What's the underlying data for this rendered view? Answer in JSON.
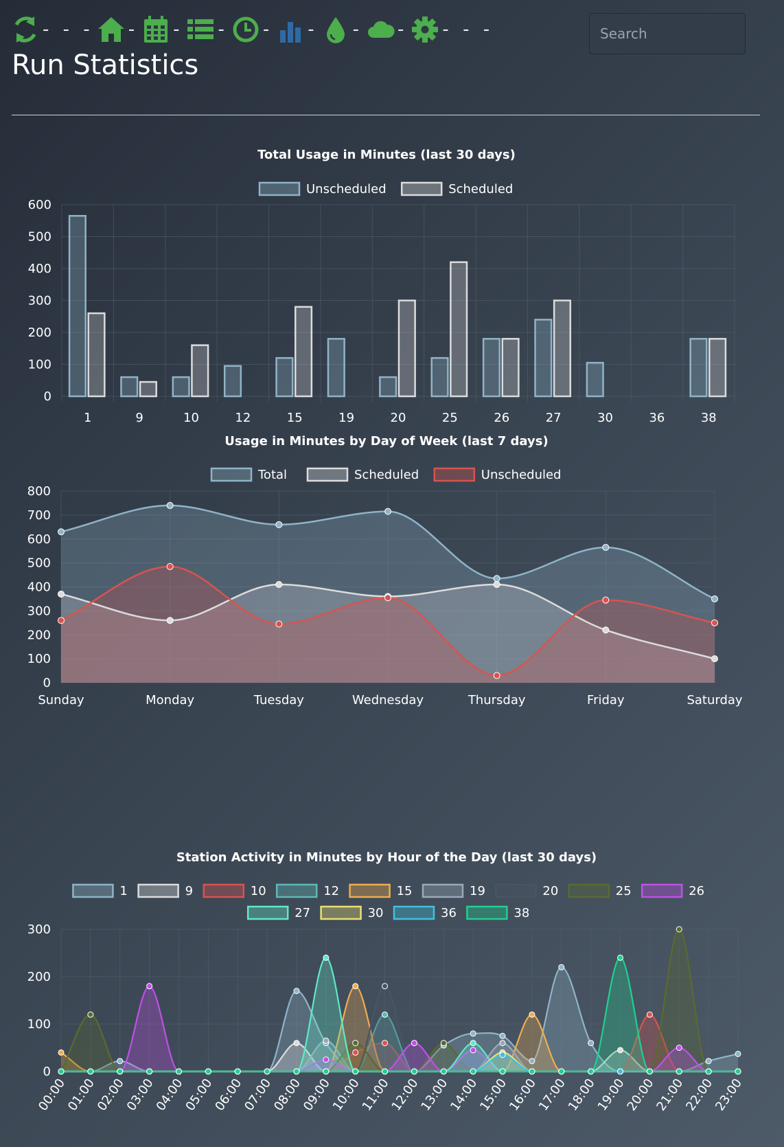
{
  "toolbar": {
    "icons": [
      {
        "name": "refresh-icon",
        "color": "#4cae4c"
      },
      {
        "name": "home-icon",
        "color": "#4cae4c"
      },
      {
        "name": "calendar-icon",
        "color": "#4cae4c"
      },
      {
        "name": "list-icon",
        "color": "#4cae4c"
      },
      {
        "name": "clock-icon",
        "color": "#4cae4c"
      },
      {
        "name": "bar-chart-icon",
        "color": "#2f6aa6"
      },
      {
        "name": "water-drop-icon",
        "color": "#4cae4c"
      },
      {
        "name": "cloud-icon",
        "color": "#4cae4c"
      },
      {
        "name": "gear-icon",
        "color": "#4cae4c"
      }
    ],
    "separator": "-"
  },
  "search": {
    "placeholder": "Search"
  },
  "page": {
    "title": "Run Statistics"
  },
  "chart_data": [
    {
      "type": "bar",
      "title": "Total Usage in Minutes (last 30 days)",
      "categories": [
        "1",
        "9",
        "10",
        "12",
        "15",
        "19",
        "20",
        "25",
        "26",
        "27",
        "30",
        "36",
        "38"
      ],
      "series": [
        {
          "name": "Unscheduled",
          "values": [
            565,
            60,
            60,
            95,
            120,
            180,
            60,
            120,
            180,
            240,
            105,
            0,
            180
          ],
          "color": "#8fb4c8"
        },
        {
          "name": "Scheduled",
          "values": [
            260,
            45,
            160,
            0,
            280,
            0,
            300,
            420,
            180,
            300,
            0,
            0,
            180
          ],
          "color": "#dcdcdc"
        }
      ],
      "ylim": [
        0,
        600
      ],
      "yticks": [
        0,
        100,
        200,
        300,
        400,
        500,
        600
      ],
      "xlabel": "",
      "ylabel": "",
      "grid": true,
      "legend": "top"
    },
    {
      "type": "area",
      "title": "Usage in Minutes by Day of Week (last 7 days)",
      "categories": [
        "Sunday",
        "Monday",
        "Tuesday",
        "Wednesday",
        "Thursday",
        "Friday",
        "Saturday"
      ],
      "series": [
        {
          "name": "Total",
          "values": [
            630,
            740,
            660,
            715,
            435,
            565,
            350
          ],
          "color": "#8fb4c8"
        },
        {
          "name": "Scheduled",
          "values": [
            370,
            260,
            410,
            360,
            410,
            220,
            100
          ],
          "color": "#dcdcdc"
        },
        {
          "name": "Unscheduled",
          "values": [
            260,
            485,
            245,
            355,
            30,
            345,
            250
          ],
          "color": "#d9534f"
        }
      ],
      "ylim": [
        0,
        800
      ],
      "yticks": [
        0,
        100,
        200,
        300,
        400,
        500,
        600,
        700,
        800
      ],
      "xlabel": "",
      "ylabel": "",
      "grid": true,
      "legend": "top"
    },
    {
      "type": "area",
      "title": "Station Activity in Minutes by Hour of the Day (last 30 days)",
      "categories": [
        "00:00",
        "01:00",
        "02:00",
        "03:00",
        "04:00",
        "05:00",
        "06:00",
        "07:00",
        "08:00",
        "09:00",
        "10:00",
        "11:00",
        "12:00",
        "13:00",
        "14:00",
        "15:00",
        "16:00",
        "17:00",
        "18:00",
        "19:00",
        "20:00",
        "21:00",
        "22:00",
        "23:00"
      ],
      "series": [
        {
          "name": "1",
          "color": "#8fb4c8",
          "values": [
            0,
            0,
            22,
            0,
            0,
            0,
            0,
            0,
            170,
            60,
            0,
            0,
            0,
            55,
            80,
            75,
            22,
            220,
            60,
            0,
            0,
            0,
            22,
            37
          ]
        },
        {
          "name": "9",
          "color": "#dcdcdc",
          "values": [
            0,
            0,
            0,
            0,
            0,
            0,
            0,
            0,
            60,
            0,
            0,
            0,
            0,
            0,
            0,
            0,
            0,
            0,
            0,
            45,
            0,
            0,
            0,
            0
          ]
        },
        {
          "name": "10",
          "color": "#d9534f",
          "values": [
            0,
            0,
            0,
            0,
            0,
            0,
            0,
            0,
            0,
            0,
            40,
            60,
            0,
            0,
            0,
            0,
            0,
            0,
            0,
            0,
            120,
            0,
            0,
            0
          ]
        },
        {
          "name": "12",
          "color": "#5fb8b8",
          "values": [
            0,
            0,
            0,
            0,
            0,
            0,
            0,
            0,
            0,
            0,
            0,
            120,
            0,
            0,
            0,
            0,
            0,
            0,
            0,
            0,
            0,
            0,
            0,
            0
          ]
        },
        {
          "name": "15",
          "color": "#f0ad4e",
          "values": [
            40,
            0,
            0,
            0,
            0,
            0,
            0,
            0,
            0,
            0,
            180,
            0,
            0,
            0,
            0,
            0,
            120,
            0,
            0,
            0,
            0,
            0,
            0,
            0
          ]
        },
        {
          "name": "19",
          "color": "#9aa8b8",
          "values": [
            0,
            0,
            0,
            0,
            0,
            0,
            0,
            0,
            0,
            65,
            0,
            0,
            0,
            0,
            0,
            60,
            0,
            0,
            0,
            0,
            0,
            0,
            0,
            0
          ]
        },
        {
          "name": "20",
          "color": "#4a5562",
          "values": [
            0,
            0,
            0,
            0,
            0,
            0,
            0,
            0,
            0,
            0,
            0,
            180,
            0,
            0,
            0,
            0,
            0,
            0,
            0,
            0,
            0,
            0,
            0,
            0
          ]
        },
        {
          "name": "25",
          "color": "#5a6a30",
          "values": [
            0,
            120,
            0,
            0,
            0,
            0,
            0,
            0,
            0,
            0,
            60,
            0,
            0,
            60,
            0,
            0,
            0,
            0,
            0,
            0,
            0,
            300,
            0,
            0
          ]
        },
        {
          "name": "26",
          "color": "#c050e8",
          "values": [
            0,
            0,
            0,
            180,
            0,
            0,
            0,
            0,
            0,
            25,
            0,
            0,
            60,
            0,
            45,
            0,
            0,
            0,
            0,
            0,
            0,
            50,
            0,
            0
          ]
        },
        {
          "name": "27",
          "color": "#60e8c8",
          "values": [
            0,
            0,
            0,
            0,
            0,
            0,
            0,
            0,
            0,
            240,
            0,
            0,
            0,
            0,
            60,
            0,
            0,
            0,
            0,
            0,
            0,
            0,
            0,
            0
          ]
        },
        {
          "name": "30",
          "color": "#e8e070",
          "values": [
            0,
            0,
            0,
            0,
            0,
            0,
            0,
            0,
            0,
            0,
            0,
            0,
            0,
            0,
            0,
            40,
            0,
            0,
            0,
            0,
            0,
            0,
            0,
            0
          ]
        },
        {
          "name": "36",
          "color": "#40c0e0",
          "values": [
            0,
            0,
            0,
            0,
            0,
            0,
            0,
            0,
            0,
            0,
            0,
            0,
            0,
            0,
            0,
            35,
            0,
            0,
            0,
            0,
            0,
            0,
            0,
            0
          ]
        },
        {
          "name": "38",
          "color": "#20d090",
          "values": [
            0,
            0,
            0,
            0,
            0,
            0,
            0,
            0,
            0,
            0,
            0,
            0,
            0,
            0,
            0,
            0,
            0,
            0,
            0,
            240,
            0,
            0,
            0,
            0
          ]
        }
      ],
      "ylim": [
        0,
        300
      ],
      "yticks": [
        0,
        100,
        200,
        300
      ],
      "xlabel": "",
      "ylabel": "",
      "grid": true,
      "legend": "top"
    }
  ]
}
